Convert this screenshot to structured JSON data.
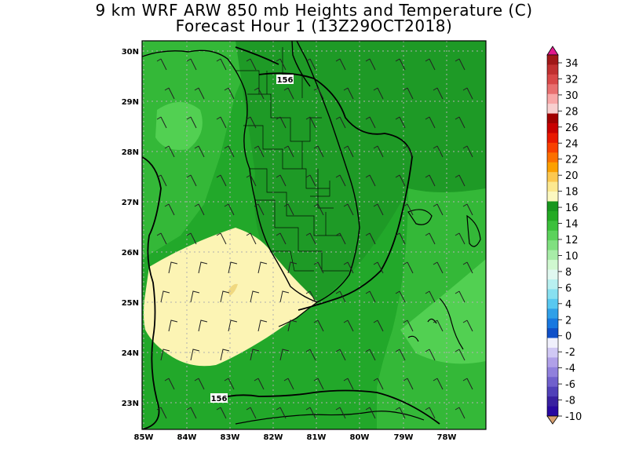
{
  "title": {
    "line1": "9 km WRF ARW 850 mb Heights and Temperature (C)",
    "line2": "Forecast Hour 1 (13Z29OCT2018)"
  },
  "map": {
    "region": "South Florida, Florida Keys, northwest Bahamas",
    "lat_labels": [
      "30N",
      "29N",
      "28N",
      "27N",
      "26N",
      "25N",
      "24N",
      "23N"
    ],
    "lon_labels": [
      "85W",
      "84W",
      "83W",
      "82W",
      "81W",
      "80W",
      "79W",
      "78W"
    ],
    "height_contour_labels": [
      "156",
      "156"
    ],
    "grid": "dotted"
  },
  "colorbar": {
    "labels": [
      "34",
      "32",
      "30",
      "28",
      "26",
      "24",
      "22",
      "20",
      "18",
      "16",
      "14",
      "12",
      "10",
      "8",
      "6",
      "4",
      "2",
      "0",
      "-2",
      "-4",
      "-6",
      "-8",
      "-10"
    ],
    "colors": [
      "#a01010",
      "#c02020",
      "#e04848",
      "#f07878",
      "#f8b0b0",
      "#b40000",
      "#dc1400",
      "#f84010",
      "#fc9010",
      "#fcc040",
      "#fcf0a8",
      "#109010",
      "#28a428",
      "#48c048",
      "#70d870",
      "#a0eca0",
      "#d0f8d0",
      "#c8f0f0",
      "#90e0f0",
      "#60c0f0",
      "#3090e8",
      "#1860d8",
      "#1040b8",
      "#e0e0f8",
      "#c0b8f0",
      "#9888e0",
      "#7060d0",
      "#4838b0",
      "#281890"
    ],
    "bar_colors": [
      "#a01818",
      "#c03030",
      "#d84848",
      "#e87070",
      "#f8a8a8",
      "#f8d0d0",
      "#a00000",
      "#c80000",
      "#e81800",
      "#f84000",
      "#fc7000",
      "#fca000",
      "#fcc850",
      "#fce890",
      "#fcf8c0",
      "#18961e",
      "#24aa24",
      "#3cc03c",
      "#5cd25c",
      "#80e080",
      "#a8eca8",
      "#d0f8d0",
      "#e0f8f0",
      "#b8f0f0",
      "#88e0f0",
      "#58c8f0",
      "#30a0e8",
      "#1878e0",
      "#1050c8",
      "#f0f0fc",
      "#d0c8f4",
      "#b0a0e8",
      "#9080dc",
      "#7060cc",
      "#5040b8",
      "#3820a0",
      "#2808a0"
    ],
    "max_arrow_color": "#e0198c",
    "min_arrow_color": "#d8a070"
  },
  "temperature_colors": {
    "t18": "#fcf4b4",
    "t17": "#f8e898",
    "t16": "#1e9a26",
    "t15": "#22a82a",
    "t14": "#34b838",
    "t13": "#52d052",
    "land_core": "#1e9a26"
  }
}
